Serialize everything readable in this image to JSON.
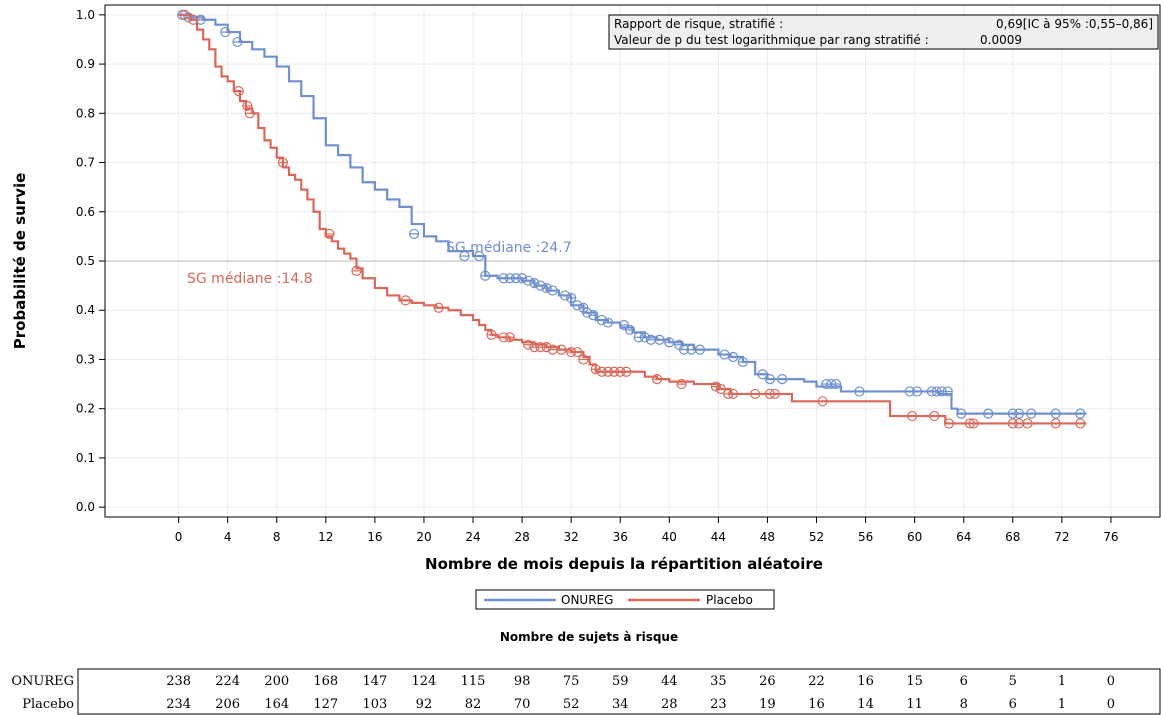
{
  "chart_data": {
    "type": "line",
    "title": "",
    "xlabel": "Nombre de mois depuis la répartition aléatoire",
    "ylabel": "Probabilité de survie",
    "xlim": [
      -6,
      80
    ],
    "ylim": [
      -0.02,
      1.02
    ],
    "x_ticks": [
      0,
      4,
      8,
      12,
      16,
      20,
      24,
      28,
      32,
      36,
      40,
      44,
      48,
      52,
      56,
      60,
      64,
      68,
      72,
      76
    ],
    "y_ticks": [
      "0.0",
      "0.1",
      "0.2",
      "0.3",
      "0.4",
      "0.5",
      "0.6",
      "0.7",
      "0.8",
      "0.9",
      "1.0"
    ],
    "grid": true,
    "reference_line_y": 0.5,
    "stats_box": {
      "row1_label": "Rapport de risque, stratifié :",
      "row1_value": "0,69[IC à 95% :0,55–0,86]",
      "row2_label": "Valeur de p du test logarithmique par rang stratifié :",
      "row2_value": "0.0009"
    },
    "annotations": [
      {
        "text": "SG médiane :24.7",
        "series": "ONUREG",
        "x": 24.7,
        "y": 0.52
      },
      {
        "text": "SG médiane :14.8",
        "series": "Placebo",
        "x": 14.8,
        "y": 0.47
      }
    ],
    "legend": {
      "position": "bottom",
      "items": [
        {
          "name": "ONUREG",
          "color": "#6f8fcf"
        },
        {
          "name": "Placebo",
          "color": "#d9685a"
        }
      ]
    },
    "series": [
      {
        "name": "ONUREG",
        "color": "#6f8fcf",
        "steps": [
          [
            0,
            1.0
          ],
          [
            1,
            0.995
          ],
          [
            2,
            0.99
          ],
          [
            3,
            0.98
          ],
          [
            4,
            0.965
          ],
          [
            5,
            0.945
          ],
          [
            6,
            0.93
          ],
          [
            7,
            0.915
          ],
          [
            8,
            0.895
          ],
          [
            9,
            0.865
          ],
          [
            10,
            0.835
          ],
          [
            11,
            0.79
          ],
          [
            12,
            0.735
          ],
          [
            13,
            0.715
          ],
          [
            14,
            0.69
          ],
          [
            15,
            0.66
          ],
          [
            16,
            0.645
          ],
          [
            17,
            0.625
          ],
          [
            18,
            0.61
          ],
          [
            19,
            0.575
          ],
          [
            20,
            0.55
          ],
          [
            21,
            0.54
          ],
          [
            22,
            0.52
          ],
          [
            24,
            0.51
          ],
          [
            25,
            0.47
          ],
          [
            26,
            0.465
          ],
          [
            28,
            0.46
          ],
          [
            29,
            0.45
          ],
          [
            30,
            0.44
          ],
          [
            31,
            0.43
          ],
          [
            32,
            0.41
          ],
          [
            33,
            0.395
          ],
          [
            34,
            0.38
          ],
          [
            35,
            0.375
          ],
          [
            36,
            0.365
          ],
          [
            37,
            0.355
          ],
          [
            38,
            0.345
          ],
          [
            39,
            0.34
          ],
          [
            40,
            0.335
          ],
          [
            41,
            0.33
          ],
          [
            42,
            0.32
          ],
          [
            44,
            0.31
          ],
          [
            45,
            0.305
          ],
          [
            46,
            0.295
          ],
          [
            47,
            0.27
          ],
          [
            48,
            0.26
          ],
          [
            50,
            0.26
          ],
          [
            51,
            0.255
          ],
          [
            52,
            0.245
          ],
          [
            54,
            0.235
          ],
          [
            60,
            0.235
          ],
          [
            62,
            0.23
          ],
          [
            63,
            0.2
          ],
          [
            63.5,
            0.19
          ],
          [
            74,
            0.19
          ]
        ],
        "censored": [
          [
            0.3,
            1.0
          ],
          [
            0.8,
            0.995
          ],
          [
            1.8,
            0.99
          ],
          [
            3.8,
            0.965
          ],
          [
            4.8,
            0.945
          ],
          [
            19.2,
            0.555
          ],
          [
            23.3,
            0.51
          ],
          [
            24.5,
            0.51
          ],
          [
            25,
            0.47
          ],
          [
            26.5,
            0.465
          ],
          [
            27,
            0.465
          ],
          [
            27.5,
            0.465
          ],
          [
            28,
            0.465
          ],
          [
            28.5,
            0.46
          ],
          [
            29,
            0.455
          ],
          [
            29.5,
            0.45
          ],
          [
            30,
            0.445
          ],
          [
            30.5,
            0.44
          ],
          [
            31.5,
            0.43
          ],
          [
            32,
            0.425
          ],
          [
            32.5,
            0.41
          ],
          [
            33,
            0.405
          ],
          [
            33.3,
            0.395
          ],
          [
            33.8,
            0.39
          ],
          [
            34.5,
            0.38
          ],
          [
            35,
            0.375
          ],
          [
            36.3,
            0.37
          ],
          [
            36.8,
            0.36
          ],
          [
            37.5,
            0.345
          ],
          [
            38,
            0.345
          ],
          [
            38.5,
            0.34
          ],
          [
            39.2,
            0.34
          ],
          [
            40,
            0.335
          ],
          [
            40.8,
            0.33
          ],
          [
            41.2,
            0.32
          ],
          [
            41.8,
            0.32
          ],
          [
            42.5,
            0.32
          ],
          [
            44.5,
            0.31
          ],
          [
            45.2,
            0.305
          ],
          [
            46,
            0.295
          ],
          [
            47.6,
            0.27
          ],
          [
            48.2,
            0.26
          ],
          [
            49.2,
            0.26
          ],
          [
            52.8,
            0.25
          ],
          [
            53.2,
            0.25
          ],
          [
            53.6,
            0.25
          ],
          [
            55.5,
            0.235
          ],
          [
            59.6,
            0.235
          ],
          [
            60.2,
            0.235
          ],
          [
            61.4,
            0.235
          ],
          [
            61.8,
            0.235
          ],
          [
            62.2,
            0.235
          ],
          [
            62.7,
            0.235
          ],
          [
            63.8,
            0.19
          ],
          [
            66,
            0.19
          ],
          [
            68,
            0.19
          ],
          [
            68.5,
            0.19
          ],
          [
            69.5,
            0.19
          ],
          [
            71.5,
            0.19
          ],
          [
            73.5,
            0.19
          ]
        ]
      },
      {
        "name": "Placebo",
        "color": "#d9685a",
        "steps": [
          [
            0,
            1.0
          ],
          [
            1,
            0.99
          ],
          [
            1.5,
            0.97
          ],
          [
            2,
            0.95
          ],
          [
            2.5,
            0.93
          ],
          [
            3,
            0.895
          ],
          [
            3.5,
            0.875
          ],
          [
            4,
            0.865
          ],
          [
            4.5,
            0.845
          ],
          [
            5,
            0.825
          ],
          [
            5.5,
            0.81
          ],
          [
            6,
            0.8
          ],
          [
            6.5,
            0.77
          ],
          [
            7,
            0.745
          ],
          [
            7.5,
            0.73
          ],
          [
            8,
            0.71
          ],
          [
            8.5,
            0.69
          ],
          [
            9,
            0.675
          ],
          [
            9.5,
            0.665
          ],
          [
            10,
            0.645
          ],
          [
            10.5,
            0.625
          ],
          [
            11,
            0.6
          ],
          [
            11.5,
            0.565
          ],
          [
            12,
            0.55
          ],
          [
            12.5,
            0.54
          ],
          [
            13,
            0.525
          ],
          [
            13.5,
            0.515
          ],
          [
            14,
            0.505
          ],
          [
            14.5,
            0.485
          ],
          [
            15,
            0.465
          ],
          [
            16,
            0.445
          ],
          [
            17,
            0.43
          ],
          [
            18,
            0.42
          ],
          [
            19,
            0.415
          ],
          [
            20,
            0.41
          ],
          [
            21,
            0.405
          ],
          [
            22,
            0.4
          ],
          [
            23,
            0.39
          ],
          [
            24,
            0.38
          ],
          [
            24.5,
            0.37
          ],
          [
            25,
            0.36
          ],
          [
            25.5,
            0.35
          ],
          [
            26,
            0.345
          ],
          [
            27,
            0.34
          ],
          [
            28,
            0.335
          ],
          [
            29,
            0.33
          ],
          [
            30,
            0.325
          ],
          [
            31,
            0.32
          ],
          [
            32,
            0.315
          ],
          [
            33,
            0.305
          ],
          [
            33.5,
            0.29
          ],
          [
            34,
            0.275
          ],
          [
            36,
            0.275
          ],
          [
            38,
            0.265
          ],
          [
            39,
            0.26
          ],
          [
            40,
            0.255
          ],
          [
            42,
            0.25
          ],
          [
            44,
            0.24
          ],
          [
            45,
            0.23
          ],
          [
            48,
            0.23
          ],
          [
            50,
            0.215
          ],
          [
            54,
            0.215
          ],
          [
            58,
            0.185
          ],
          [
            62,
            0.185
          ],
          [
            62.5,
            0.17
          ],
          [
            74,
            0.17
          ]
        ],
        "censored": [
          [
            0.5,
            1.0
          ],
          [
            1.2,
            0.99
          ],
          [
            4.9,
            0.845
          ],
          [
            5.6,
            0.815
          ],
          [
            5.8,
            0.8
          ],
          [
            8.5,
            0.7
          ],
          [
            12.3,
            0.555
          ],
          [
            14.5,
            0.48
          ],
          [
            18.5,
            0.42
          ],
          [
            21.2,
            0.405
          ],
          [
            25.5,
            0.35
          ],
          [
            26.5,
            0.345
          ],
          [
            27,
            0.345
          ],
          [
            28.5,
            0.33
          ],
          [
            29,
            0.325
          ],
          [
            29.5,
            0.325
          ],
          [
            30,
            0.325
          ],
          [
            30.5,
            0.32
          ],
          [
            31.2,
            0.32
          ],
          [
            32,
            0.315
          ],
          [
            32.5,
            0.315
          ],
          [
            33,
            0.3
          ],
          [
            34,
            0.28
          ],
          [
            34.5,
            0.275
          ],
          [
            35,
            0.275
          ],
          [
            35.5,
            0.275
          ],
          [
            36,
            0.275
          ],
          [
            36.5,
            0.275
          ],
          [
            39,
            0.26
          ],
          [
            41,
            0.25
          ],
          [
            43.8,
            0.245
          ],
          [
            44.2,
            0.24
          ],
          [
            44.8,
            0.23
          ],
          [
            45.2,
            0.23
          ],
          [
            47,
            0.23
          ],
          [
            48.2,
            0.23
          ],
          [
            48.6,
            0.23
          ],
          [
            52.5,
            0.215
          ],
          [
            59.8,
            0.185
          ],
          [
            61.6,
            0.185
          ],
          [
            62.8,
            0.17
          ],
          [
            64.5,
            0.17
          ],
          [
            64.8,
            0.17
          ],
          [
            68,
            0.17
          ],
          [
            68.5,
            0.17
          ],
          [
            69.2,
            0.17
          ],
          [
            71.5,
            0.17
          ],
          [
            73.5,
            0.17
          ]
        ]
      }
    ],
    "risk_table": {
      "title": "Nombre de sujets à risque",
      "rows": [
        {
          "label": "ONUREG",
          "values": [
            "238",
            "224",
            "200",
            "168",
            "147",
            "124",
            "115",
            "98",
            "75",
            "59",
            "44",
            "35",
            "26",
            "22",
            "16",
            "15",
            "6",
            "5",
            "1",
            "0"
          ]
        },
        {
          "label": "Placebo",
          "values": [
            "234",
            "206",
            "164",
            "127",
            "103",
            "92",
            "82",
            "70",
            "52",
            "34",
            "28",
            "23",
            "19",
            "16",
            "14",
            "11",
            "8",
            "6",
            "1",
            "0"
          ]
        }
      ]
    }
  }
}
